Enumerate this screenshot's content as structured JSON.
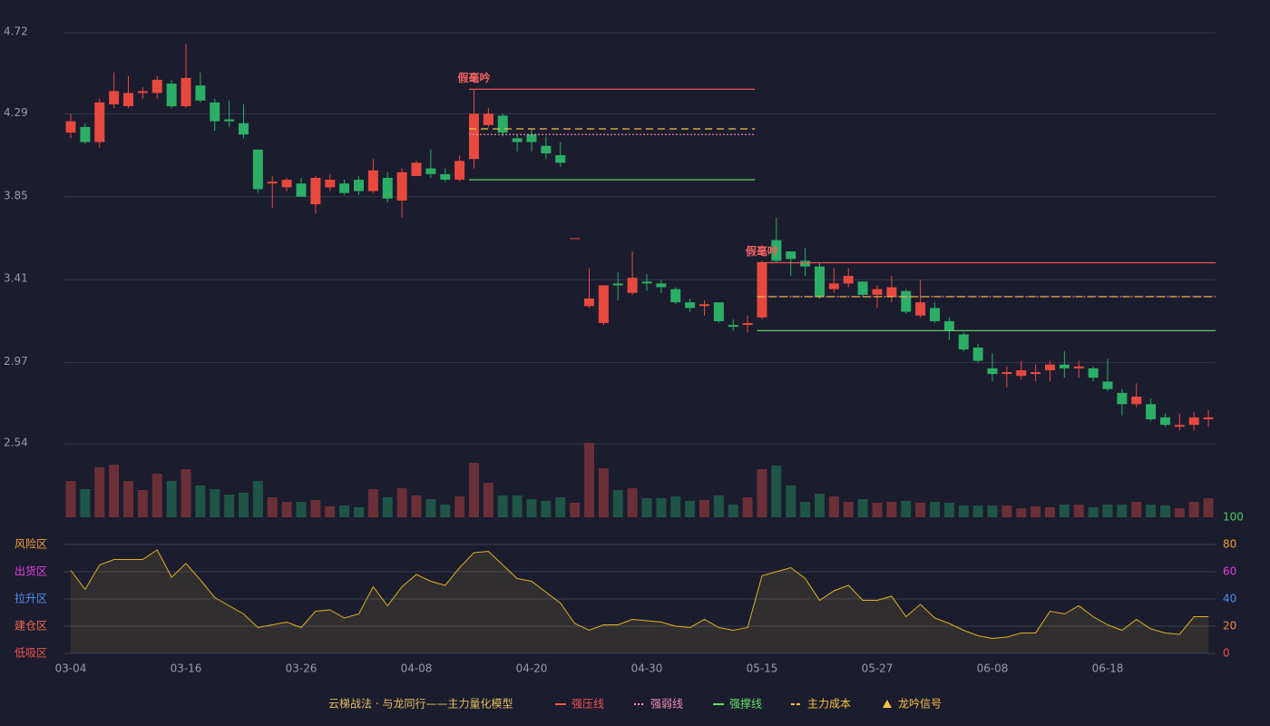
{
  "chart_data": [
    {
      "type": "candlestick",
      "open": [
        4.19,
        4.22,
        4.14,
        4.34,
        4.33,
        4.4,
        4.4,
        4.45,
        4.33,
        4.44,
        4.35,
        4.26,
        4.24,
        4.1,
        3.92,
        3.9,
        3.92,
        3.81,
        3.9,
        3.92,
        3.94,
        3.88,
        3.95,
        3.83,
        3.96,
        4.0,
        3.97,
        3.94,
        4.05,
        4.23,
        4.28,
        4.16,
        4.18,
        4.12,
        4.07,
        3.63,
        3.27,
        3.18,
        3.39,
        3.34,
        3.4,
        3.39,
        3.36,
        3.29,
        3.27,
        3.29,
        3.17,
        3.17,
        3.21,
        3.62,
        3.56,
        3.51,
        3.48,
        3.36,
        3.39,
        3.4,
        3.33,
        3.32,
        3.35,
        3.22,
        3.26,
        3.19,
        3.12,
        3.05,
        2.94,
        2.91,
        2.9,
        2.91,
        2.93,
        2.96,
        2.94,
        2.94,
        2.87,
        2.81,
        2.75,
        2.75,
        2.68,
        2.63,
        2.64,
        2.67
      ],
      "close": [
        4.25,
        4.14,
        4.35,
        4.41,
        4.4,
        4.41,
        4.47,
        4.33,
        4.48,
        4.36,
        4.25,
        4.25,
        4.18,
        3.89,
        3.93,
        3.94,
        3.85,
        3.95,
        3.94,
        3.87,
        3.88,
        3.99,
        3.84,
        3.98,
        4.03,
        3.97,
        3.94,
        4.04,
        4.29,
        4.29,
        4.19,
        4.14,
        4.14,
        4.08,
        4.03,
        3.63,
        3.31,
        3.38,
        3.38,
        3.42,
        3.39,
        3.37,
        3.29,
        3.26,
        3.28,
        3.19,
        3.16,
        3.18,
        3.5,
        3.51,
        3.52,
        3.48,
        3.32,
        3.39,
        3.43,
        3.33,
        3.36,
        3.37,
        3.24,
        3.29,
        3.19,
        3.14,
        3.04,
        2.98,
        2.91,
        2.92,
        2.93,
        2.92,
        2.96,
        2.94,
        2.95,
        2.89,
        2.83,
        2.75,
        2.79,
        2.67,
        2.64,
        2.64,
        2.68,
        2.68
      ],
      "high": [
        4.29,
        4.24,
        4.37,
        4.51,
        4.49,
        4.43,
        4.49,
        4.47,
        4.66,
        4.51,
        4.37,
        4.36,
        4.34,
        4.1,
        3.96,
        3.95,
        3.95,
        3.96,
        3.97,
        3.94,
        3.96,
        4.05,
        3.98,
        4.0,
        4.04,
        4.1,
        4.0,
        4.07,
        4.42,
        4.32,
        4.29,
        4.18,
        4.21,
        4.17,
        4.14,
        3.63,
        3.47,
        3.38,
        3.45,
        3.56,
        3.44,
        3.41,
        3.37,
        3.31,
        3.3,
        3.29,
        3.2,
        3.22,
        3.51,
        3.74,
        3.56,
        3.58,
        3.5,
        3.47,
        3.47,
        3.4,
        3.38,
        3.43,
        3.36,
        3.41,
        3.29,
        3.21,
        3.13,
        3.07,
        3.02,
        2.95,
        2.98,
        2.96,
        2.98,
        3.03,
        2.98,
        2.95,
        2.99,
        2.83,
        2.86,
        2.78,
        2.7,
        2.7,
        2.71,
        2.72
      ],
      "low": [
        4.16,
        4.13,
        4.11,
        4.32,
        4.32,
        4.37,
        4.37,
        4.32,
        4.32,
        4.35,
        4.2,
        4.22,
        4.16,
        3.87,
        3.79,
        3.88,
        3.85,
        3.76,
        3.88,
        3.86,
        3.86,
        3.87,
        3.82,
        3.74,
        3.96,
        3.95,
        3.93,
        3.93,
        4.0,
        4.22,
        4.17,
        4.09,
        4.09,
        4.05,
        4.01,
        3.63,
        3.26,
        3.17,
        3.3,
        3.33,
        3.35,
        3.34,
        3.28,
        3.24,
        3.22,
        3.18,
        3.14,
        3.13,
        3.2,
        3.5,
        3.43,
        3.43,
        3.31,
        3.34,
        3.37,
        3.32,
        3.26,
        3.29,
        3.23,
        3.21,
        3.18,
        3.09,
        3.03,
        2.97,
        2.87,
        2.84,
        2.88,
        2.87,
        2.87,
        2.89,
        2.89,
        2.87,
        2.82,
        2.69,
        2.73,
        2.66,
        2.63,
        2.61,
        2.61,
        2.63
      ],
      "ylim": [
        2.54,
        4.72
      ],
      "yticks": [
        2.54,
        2.97,
        3.41,
        3.85,
        4.29,
        4.72
      ],
      "grid": true,
      "up_color": "#e8493f",
      "down_color": "#2bae66",
      "signals": [
        {
          "label": "假毫吟",
          "start": 28,
          "end": 47,
          "resistance": 4.42,
          "weak": 4.18,
          "cost": 4.21,
          "support": 3.94
        },
        {
          "label": "假毫吟",
          "start": 48,
          "end": 79,
          "resistance": 3.5,
          "weak": 3.32,
          "cost": 3.32,
          "support": 3.14
        }
      ],
      "legend": {
        "title": "云梯战法 · 与龙同行——主力量化模型",
        "items": [
          {
            "name": "强压线",
            "color": "#ef5350",
            "style": "solid"
          },
          {
            "name": "强弱线",
            "color": "#f48fb1",
            "style": "dotted"
          },
          {
            "name": "强撑线",
            "color": "#66e06a",
            "style": "solid"
          },
          {
            "name": "主力成本",
            "color": "#f5c242",
            "style": "dashed"
          },
          {
            "name": "龙吟信号",
            "color": "#f5c242",
            "style": "triangle"
          }
        ]
      }
    },
    {
      "type": "bar",
      "values": [
        40,
        31,
        55,
        58,
        40,
        30,
        48,
        40,
        53,
        35,
        31,
        25,
        27,
        40,
        22,
        17,
        17,
        19,
        12,
        13,
        11,
        31,
        22,
        32,
        24,
        20,
        14,
        23,
        60,
        38,
        24,
        24,
        20,
        18,
        22,
        16,
        82,
        54,
        30,
        32,
        21,
        21,
        23,
        18,
        19,
        24,
        14,
        22,
        53,
        57,
        35,
        17,
        26,
        23,
        17,
        20,
        16,
        17,
        18,
        16,
        17,
        16,
        13,
        13,
        13,
        13,
        10,
        12,
        11,
        14,
        14,
        11,
        14,
        14,
        17,
        14,
        13,
        10,
        17,
        21
      ],
      "ylim": [
        0,
        82
      ],
      "up_color": "#6b2f37",
      "down_color": "#1f5546"
    },
    {
      "type": "line",
      "categories": [
        "03-04",
        null,
        null,
        null,
        null,
        null,
        null,
        null,
        "03-16",
        null,
        null,
        null,
        null,
        null,
        null,
        null,
        "03-26",
        null,
        null,
        null,
        null,
        null,
        null,
        null,
        "04-08",
        null,
        null,
        null,
        null,
        null,
        null,
        null,
        "04-20",
        null,
        null,
        null,
        null,
        null,
        null,
        null,
        "04-30",
        null,
        null,
        null,
        null,
        null,
        null,
        null,
        "05-15",
        null,
        null,
        null,
        null,
        null,
        null,
        null,
        "05-27",
        null,
        null,
        null,
        null,
        null,
        null,
        null,
        "06-08",
        null,
        null,
        null,
        null,
        null,
        null,
        null,
        "06-18",
        null,
        null,
        null,
        null,
        null,
        null,
        null
      ],
      "values": [
        61,
        47,
        65,
        69,
        69,
        69,
        76,
        56,
        66,
        54,
        41,
        35,
        29,
        19,
        21,
        23,
        19,
        31,
        32,
        26,
        29,
        49,
        35,
        49,
        58,
        53,
        50,
        63,
        74,
        75,
        65,
        55,
        53,
        45,
        37,
        22,
        17,
        21,
        21,
        25,
        24,
        23,
        20,
        19,
        25,
        19,
        17,
        19,
        57,
        60,
        63,
        55,
        39,
        46,
        50,
        39,
        39,
        42,
        27,
        36,
        26,
        22,
        17,
        13,
        11,
        12,
        15,
        15,
        31,
        29,
        35,
        27,
        21,
        17,
        25,
        18,
        15,
        14,
        27,
        27
      ],
      "color": "#d9b420",
      "ylim": [
        0,
        100
      ],
      "yticks": [
        0,
        20,
        40,
        60,
        80,
        100
      ],
      "tick_colors": [
        "#ef5350",
        "#f08a3c",
        "#4f8ef0",
        "#e040e0",
        "#f0a030",
        "#4cd060"
      ],
      "zones": [
        {
          "label": "低吸区",
          "value": 0,
          "color": "#ef5350"
        },
        {
          "label": "建仓区",
          "value": 20,
          "color": "#f06a50"
        },
        {
          "label": "拉升区",
          "value": 40,
          "color": "#4f8ef0"
        },
        {
          "label": "出货区",
          "value": 60,
          "color": "#e040e0"
        },
        {
          "label": "风险区",
          "value": 80,
          "color": "#f0a030"
        }
      ]
    }
  ]
}
